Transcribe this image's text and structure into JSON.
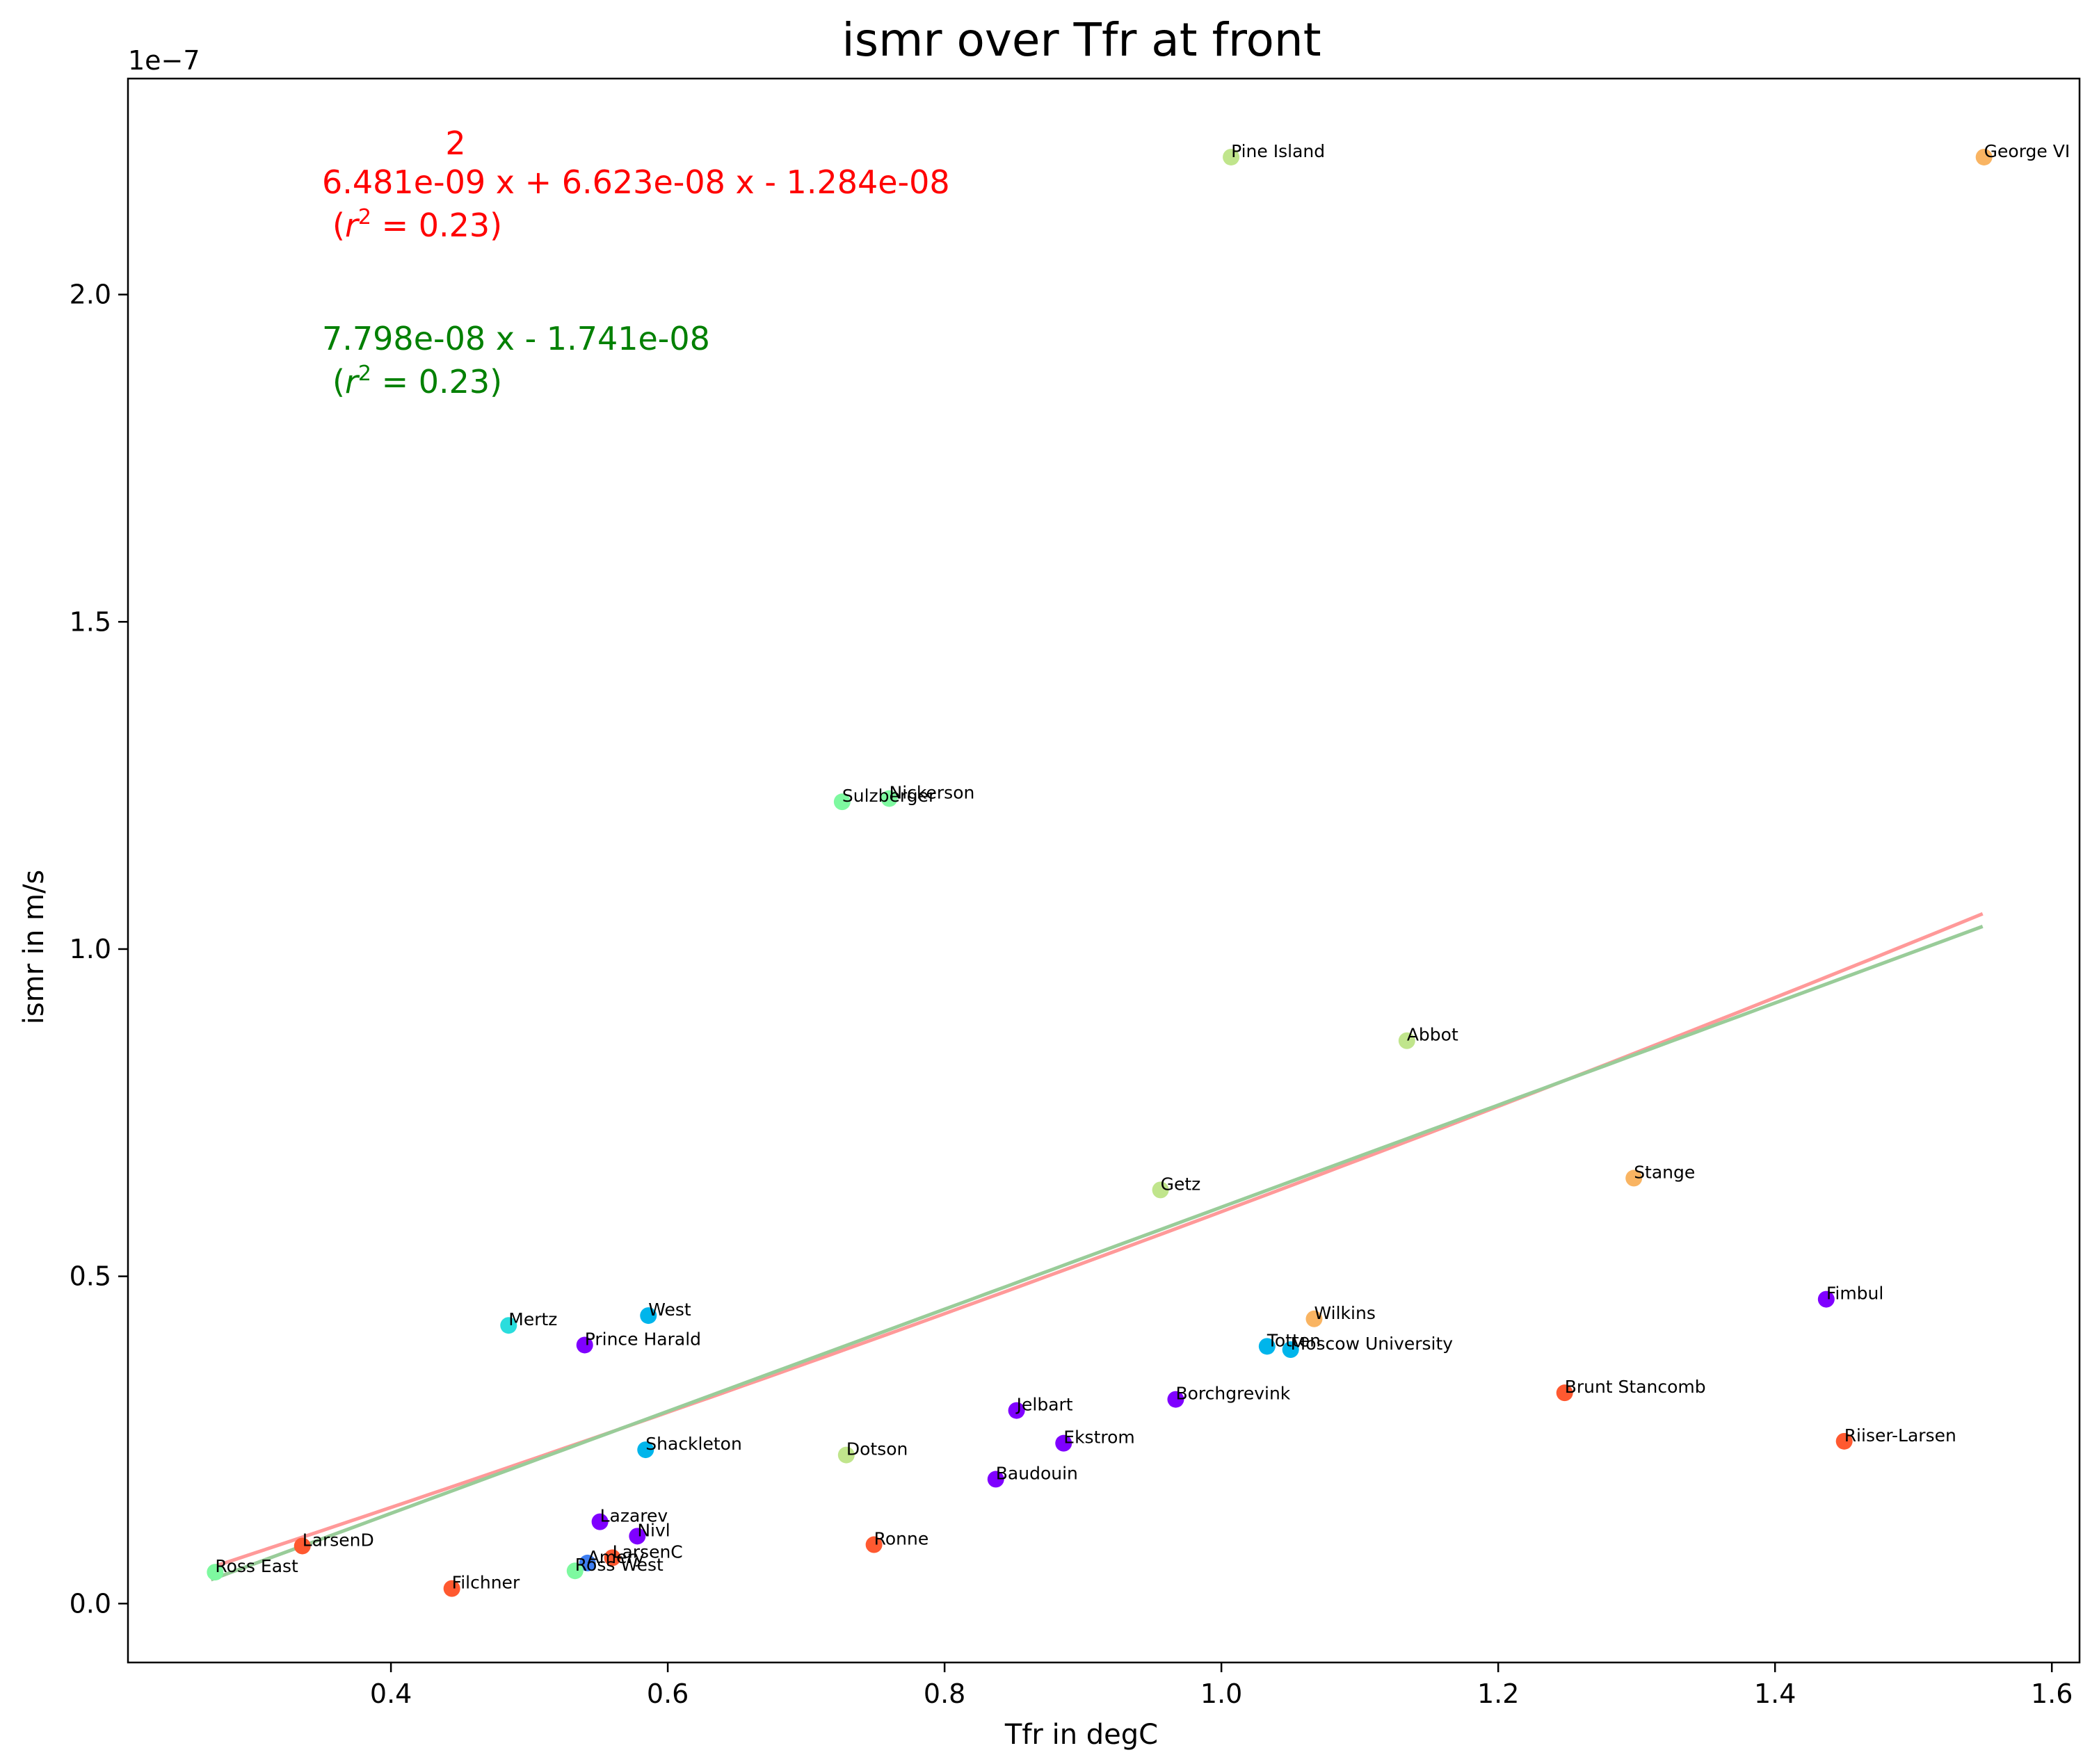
{
  "chart_data": {
    "type": "scatter",
    "title": "ismr over Tfr at front",
    "xlabel": "Tfr in degC",
    "ylabel": "ismr in m/s",
    "y_offset_text": "1e−7",
    "y_scale": 1e-07,
    "xlim": [
      0.21,
      1.62
    ],
    "ylim": [
      -0.09,
      2.33
    ],
    "x_ticks": [
      0.4,
      0.6,
      0.8,
      1.0,
      1.2,
      1.4,
      1.6
    ],
    "x_tick_labels": [
      "0.4",
      "0.6",
      "0.8",
      "1.0",
      "1.2",
      "1.4",
      "1.6"
    ],
    "y_ticks": [
      0.0,
      0.5,
      1.0,
      1.5,
      2.0
    ],
    "y_tick_labels": [
      "0.0",
      "0.5",
      "1.0",
      "1.5",
      "2.0"
    ],
    "grid": false,
    "legend": "none",
    "annotations": {
      "poly_exponent": "2",
      "poly_equation": "6.481e-09 x + 6.623e-08 x - 1.284e-08",
      "poly_r2_prefix": "(",
      "poly_r2_var": "r",
      "poly_r2_sup": "2",
      "poly_r2_suffix": " = 0.23)",
      "poly_color": "#ff0000",
      "lin_equation": "7.798e-08 x - 1.741e-08",
      "lin_r2_prefix": "(",
      "lin_r2_var": "r",
      "lin_r2_sup": "2",
      "lin_r2_suffix": " = 0.23)",
      "lin_color": "#008000"
    },
    "fits": [
      {
        "kind": "quadratic",
        "coefficients": [
          6.481e-09,
          6.623e-08,
          -1.284e-08
        ],
        "x_range": [
          0.27,
          1.55
        ],
        "color": "#ff9999",
        "r2": 0.23
      },
      {
        "kind": "linear",
        "coefficients": [
          7.798e-08,
          -1.741e-08
        ],
        "x_range": [
          0.27,
          1.55
        ],
        "color": "#99cc99",
        "r2": 0.23
      }
    ],
    "points": [
      {
        "label": "Pine Island",
        "x": 1.007,
        "y": 2.21,
        "color": "#c0e58c"
      },
      {
        "label": "George VI",
        "x": 1.551,
        "y": 2.21,
        "color": "#f9b462"
      },
      {
        "label": "Sulzberger",
        "x": 0.726,
        "y": 1.225,
        "color": "#7ef9a0"
      },
      {
        "label": "Nickerson",
        "x": 0.76,
        "y": 1.23,
        "color": "#7ef9a0"
      },
      {
        "label": "Abbot",
        "x": 1.134,
        "y": 0.86,
        "color": "#c0e58c"
      },
      {
        "label": "Getz",
        "x": 0.956,
        "y": 0.632,
        "color": "#c0e58c"
      },
      {
        "label": "Stange",
        "x": 1.298,
        "y": 0.65,
        "color": "#f9b462"
      },
      {
        "label": "Fimbul",
        "x": 1.437,
        "y": 0.465,
        "color": "#7f00ff"
      },
      {
        "label": "Wilkins",
        "x": 1.067,
        "y": 0.435,
        "color": "#f9b462"
      },
      {
        "label": "Totten",
        "x": 1.033,
        "y": 0.393,
        "color": "#00b5eb"
      },
      {
        "label": "Moscow University",
        "x": 1.05,
        "y": 0.388,
        "color": "#00b5eb"
      },
      {
        "label": "Brunt Stancomb",
        "x": 1.248,
        "y": 0.322,
        "color": "#ff5930"
      },
      {
        "label": "Riiser-Larsen",
        "x": 1.45,
        "y": 0.248,
        "color": "#ff5930"
      },
      {
        "label": "Borchgrevink",
        "x": 0.967,
        "y": 0.312,
        "color": "#7f00ff"
      },
      {
        "label": "Jelbart",
        "x": 0.852,
        "y": 0.295,
        "color": "#7f00ff"
      },
      {
        "label": "Ekstrom",
        "x": 0.886,
        "y": 0.245,
        "color": "#7f00ff"
      },
      {
        "label": "Baudouin",
        "x": 0.837,
        "y": 0.19,
        "color": "#7f00ff"
      },
      {
        "label": "Dotson",
        "x": 0.729,
        "y": 0.227,
        "color": "#c0e58c"
      },
      {
        "label": "Ronne",
        "x": 0.749,
        "y": 0.09,
        "color": "#ff5930"
      },
      {
        "label": "Mertz",
        "x": 0.485,
        "y": 0.425,
        "color": "#2adddd"
      },
      {
        "label": "West",
        "x": 0.586,
        "y": 0.44,
        "color": "#00b5eb"
      },
      {
        "label": "Prince Harald",
        "x": 0.54,
        "y": 0.395,
        "color": "#7f00ff"
      },
      {
        "label": "Shackleton",
        "x": 0.584,
        "y": 0.235,
        "color": "#00b5eb"
      },
      {
        "label": "Lazarev",
        "x": 0.551,
        "y": 0.125,
        "color": "#7f00ff"
      },
      {
        "label": "Nivl",
        "x": 0.578,
        "y": 0.103,
        "color": "#7f00ff"
      },
      {
        "label": "LarsenC",
        "x": 0.56,
        "y": 0.07,
        "color": "#ff5930"
      },
      {
        "label": "Amery",
        "x": 0.542,
        "y": 0.062,
        "color": "#3f7ff2"
      },
      {
        "label": "Ross West",
        "x": 0.533,
        "y": 0.05,
        "color": "#7ef9a0"
      },
      {
        "label": "Ross East",
        "x": 0.273,
        "y": 0.048,
        "color": "#7ef9a0"
      },
      {
        "label": "LarsenD",
        "x": 0.336,
        "y": 0.088,
        "color": "#ff5930"
      },
      {
        "label": "Filchner",
        "x": 0.444,
        "y": 0.023,
        "color": "#ff5930"
      }
    ]
  }
}
